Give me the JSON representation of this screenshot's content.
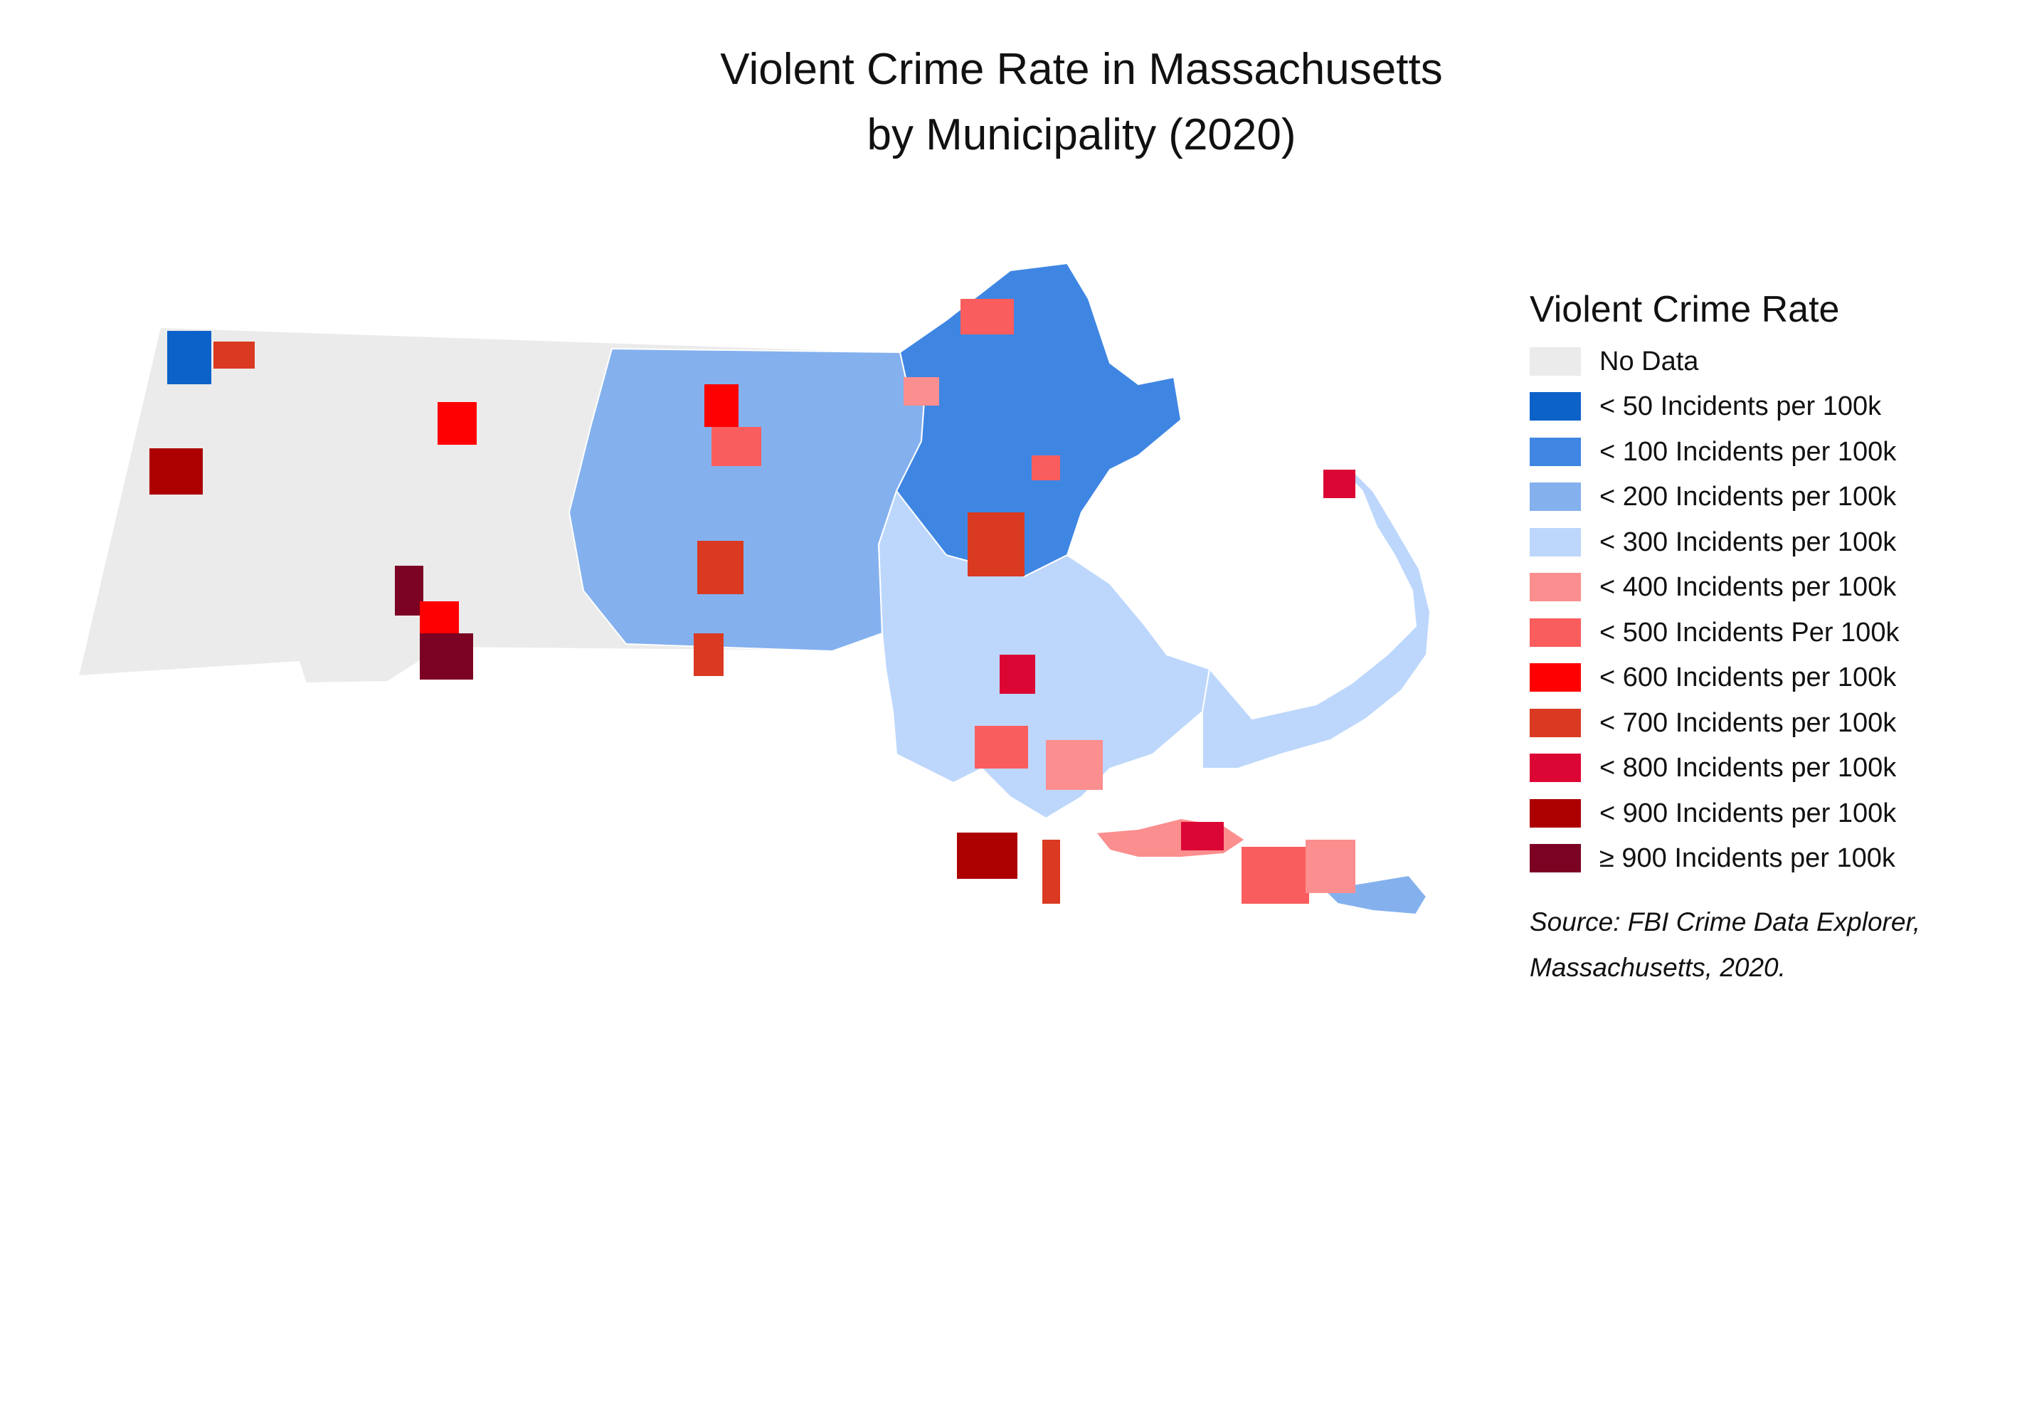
{
  "title": {
    "line1": "Violent Crime Rate in Massachusetts",
    "line2": "by Municipality (2020)"
  },
  "legend": {
    "title": "Violent Crime Rate",
    "items": [
      {
        "label": "No Data",
        "color": "#ebebeb"
      },
      {
        "label": "< 50 Incidents per 100k",
        "color": "#0c62c9"
      },
      {
        "label": "< 100 Incidents per 100k",
        "color": "#3f86e3"
      },
      {
        "label": "< 200 Incidents per 100k",
        "color": "#84b1ee"
      },
      {
        "label": "< 300 Incidents per 100k",
        "color": "#bdd7fc"
      },
      {
        "label": "< 400 Incidents per 100k",
        "color": "#fb8e8e"
      },
      {
        "label": "< 500 Incidents Per 100k",
        "color": "#fa5d5d"
      },
      {
        "label": "< 600 Incidents per 100k",
        "color": "#ff0000"
      },
      {
        "label": "< 700 Incidents per 100k",
        "color": "#da3a22"
      },
      {
        "label": "< 800 Incidents per 100k",
        "color": "#dc0635"
      },
      {
        "label": "< 900 Incidents per 100k",
        "color": "#ac0000"
      },
      {
        "label": "≥ 900 Incidents per 100k",
        "color": "#7c0224"
      }
    ]
  },
  "source": {
    "line1": "Source: FBI Crime Data Explorer,",
    "line2": "Massachusetts, 2020."
  }
}
